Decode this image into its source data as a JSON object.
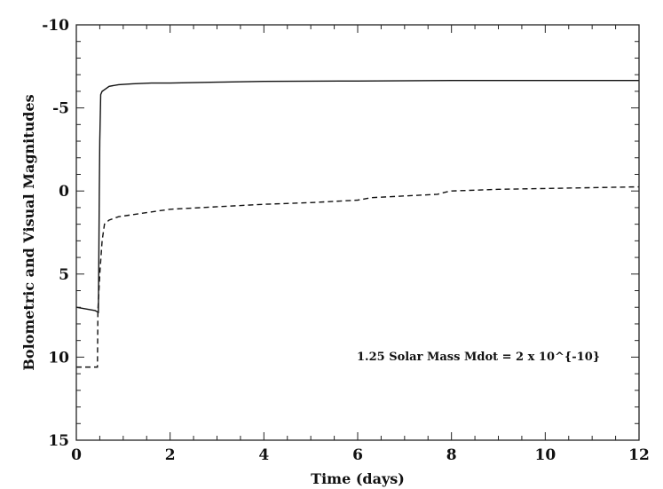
{
  "chart_data": {
    "type": "line",
    "xlabel": "Time (days)",
    "ylabel": "Bolometric and Visual Magnitudes",
    "xlim": [
      0,
      12
    ],
    "ylim": [
      15,
      -10
    ],
    "y_axis_inverted": true,
    "x_ticks": [
      0,
      2,
      4,
      6,
      8,
      10,
      12
    ],
    "y_ticks": [
      -10,
      -5,
      0,
      5,
      10,
      15
    ],
    "x_tick_labels": [
      "0",
      "2",
      "4",
      "6",
      "8",
      "10",
      "12"
    ],
    "y_tick_labels": [
      "-10",
      "-5",
      "0",
      "5",
      "10",
      "15"
    ],
    "grid": false,
    "annotation": "1.25 Solar Mass Mdot = 2 x 10^{-10}",
    "colors": {
      "line": "#111111",
      "axes": "#222222",
      "background": "#ffffff"
    },
    "series": [
      {
        "style": "solid",
        "x": [
          0,
          0.2,
          0.4,
          0.47,
          0.48,
          0.49,
          0.5,
          0.52,
          0.55,
          0.6,
          0.7,
          0.9,
          1.2,
          1.6,
          2,
          3,
          4,
          6,
          8,
          10,
          12
        ],
        "y": [
          7.0,
          7.1,
          7.2,
          7.3,
          4.0,
          0.0,
          -3.0,
          -5.8,
          -6.0,
          -6.1,
          -6.3,
          -6.4,
          -6.45,
          -6.5,
          -6.5,
          -6.55,
          -6.6,
          -6.62,
          -6.65,
          -6.65,
          -6.65
        ]
      },
      {
        "style": "dashed",
        "x": [
          0,
          0.45,
          0.46,
          0.5,
          0.55,
          0.6,
          0.7,
          0.9,
          1.5,
          2,
          3,
          4,
          5,
          6,
          6.3,
          7,
          7.7,
          7.9,
          8,
          9,
          10,
          11,
          12
        ],
        "y": [
          10.6,
          10.6,
          7.2,
          5.0,
          3.0,
          2.0,
          1.75,
          1.55,
          1.3,
          1.1,
          0.95,
          0.8,
          0.7,
          0.55,
          0.4,
          0.3,
          0.2,
          0.05,
          0.0,
          -0.1,
          -0.15,
          -0.2,
          -0.25
        ]
      }
    ]
  }
}
